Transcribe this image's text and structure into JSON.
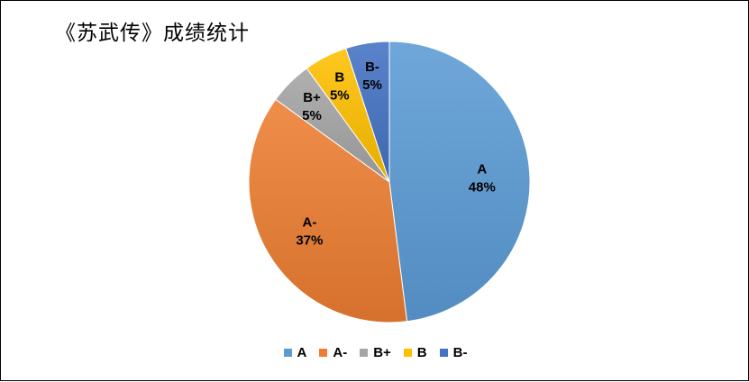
{
  "chart_data": {
    "type": "pie",
    "title": "《苏武传》成绩统计",
    "legend_position": "bottom",
    "slices": [
      {
        "name": "A",
        "percent": 48,
        "label": "48%",
        "color": "#5b9bd5"
      },
      {
        "name": "A-",
        "percent": 37,
        "label": "37%",
        "color": "#ed7d31"
      },
      {
        "name": "B+",
        "percent": 5,
        "label": "5%",
        "color": "#a5a5a5"
      },
      {
        "name": "B",
        "percent": 5,
        "label": "5%",
        "color": "#ffc000"
      },
      {
        "name": "B-",
        "percent": 5,
        "label": "5%",
        "color": "#4472c4"
      }
    ]
  }
}
